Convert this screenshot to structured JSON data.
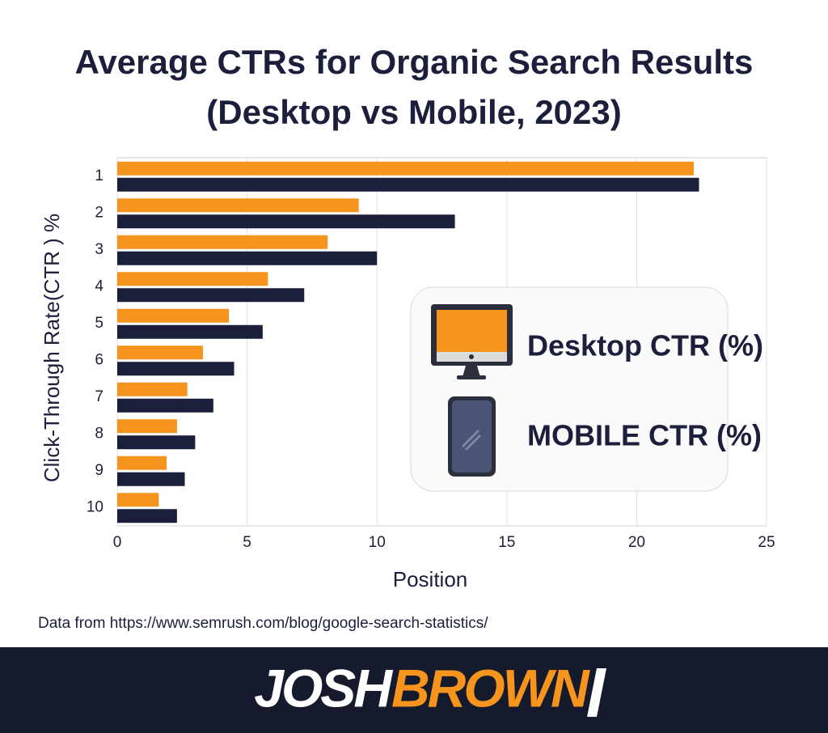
{
  "chart_data": {
    "type": "hbar",
    "title": "Average CTRs for Organic Search Results",
    "subtitle": "(Desktop vs Mobile, 2023)",
    "x_label": "Position",
    "y_label": "Click-Through Rate(CTR ) %",
    "categories": [
      "1",
      "2",
      "3",
      "4",
      "5",
      "6",
      "7",
      "8",
      "9",
      "10"
    ],
    "series": [
      {
        "name": "Desktop CTR (%)",
        "color": "#f7941d",
        "values": [
          22.2,
          9.3,
          8.1,
          5.8,
          4.3,
          3.3,
          2.7,
          2.3,
          1.9,
          1.6
        ]
      },
      {
        "name": "MOBILE CTR (%)",
        "color": "#1b1f3b",
        "values": [
          22.4,
          13.0,
          10.0,
          7.2,
          5.6,
          4.5,
          3.7,
          3.0,
          2.6,
          2.3
        ]
      }
    ],
    "xlim": [
      0,
      25
    ],
    "xticks": [
      0,
      5,
      10,
      15,
      20,
      25
    ],
    "grid": true,
    "source": "Data from https://www.semrush.com/blog/google-search-statistics/"
  },
  "footer": {
    "brand_first": "JOSH",
    "brand_second": "BROWN"
  }
}
